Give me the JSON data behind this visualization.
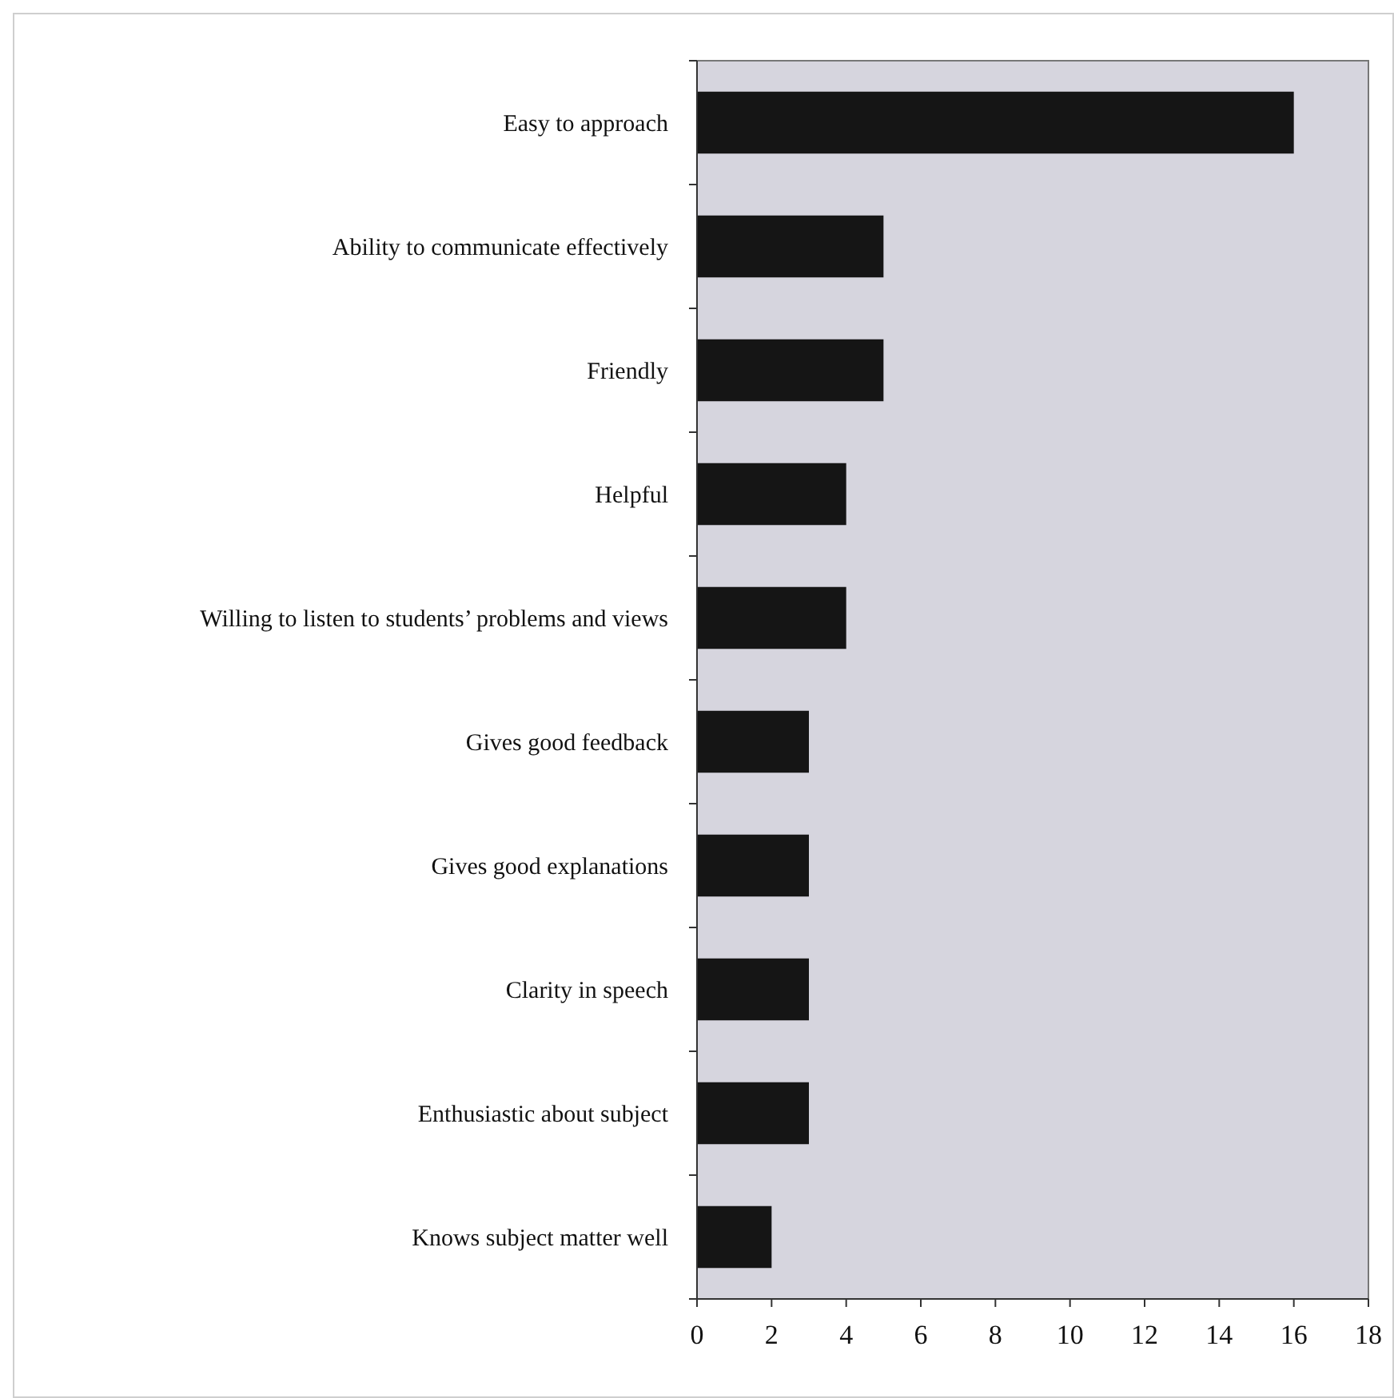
{
  "chart_data": {
    "type": "bar",
    "orientation": "horizontal",
    "categories": [
      "Easy to approach",
      "Ability to communicate effectively",
      "Friendly",
      "Helpful",
      "Willing to listen to students’ problems and views",
      "Gives good feedback",
      "Gives good explanations",
      "Clarity in speech",
      "Enthusiastic about subject",
      "Knows subject matter well"
    ],
    "values": [
      16,
      5,
      5,
      4,
      4,
      3,
      3,
      3,
      3,
      2
    ],
    "color": "#151515",
    "xlim": [
      0,
      18
    ],
    "xticks": [
      0,
      2,
      4,
      6,
      8,
      10,
      12,
      14,
      16,
      18
    ],
    "grid": false
  }
}
